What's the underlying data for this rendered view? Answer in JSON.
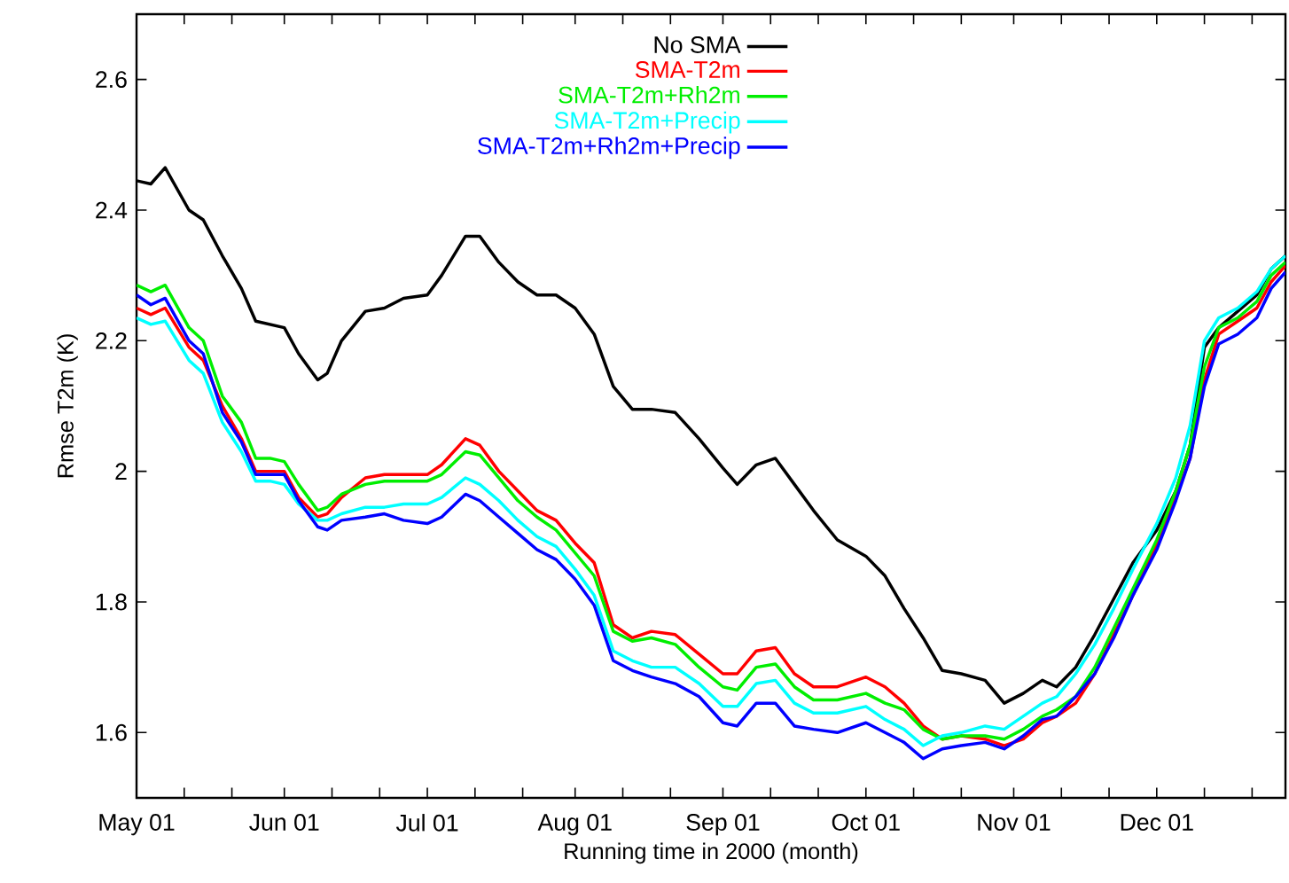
{
  "chart_data": {
    "type": "line",
    "xlabel": "Running time in 2000 (month)",
    "ylabel": "Rmse T2m (K)",
    "x": [
      "2000-05-01",
      "2000-05-04",
      "2000-05-07",
      "2000-05-12",
      "2000-05-15",
      "2000-05-19",
      "2000-05-23",
      "2000-05-26",
      "2000-05-29",
      "2000-06-01",
      "2000-06-04",
      "2000-06-08",
      "2000-06-10",
      "2000-06-13",
      "2000-06-18",
      "2000-06-22",
      "2000-06-26",
      "2000-07-01",
      "2000-07-04",
      "2000-07-09",
      "2000-07-12",
      "2000-07-16",
      "2000-07-20",
      "2000-07-24",
      "2000-07-28",
      "2000-08-01",
      "2000-08-05",
      "2000-08-09",
      "2000-08-13",
      "2000-08-17",
      "2000-08-22",
      "2000-08-27",
      "2000-09-01",
      "2000-09-04",
      "2000-09-08",
      "2000-09-12",
      "2000-09-16",
      "2000-09-20",
      "2000-09-25",
      "2000-10-01",
      "2000-10-05",
      "2000-10-09",
      "2000-10-13",
      "2000-10-17",
      "2000-10-21",
      "2000-10-26",
      "2000-10-30",
      "2000-11-03",
      "2000-11-07",
      "2000-11-10",
      "2000-11-14",
      "2000-11-18",
      "2000-11-22",
      "2000-11-26",
      "2000-12-01",
      "2000-12-05",
      "2000-12-08",
      "2000-12-11",
      "2000-12-14",
      "2000-12-18",
      "2000-12-22",
      "2000-12-25",
      "2000-12-28"
    ],
    "series": [
      {
        "name": "No SMA",
        "color": "#000000",
        "values": [
          2.445,
          2.44,
          2.465,
          2.4,
          2.385,
          2.33,
          2.28,
          2.23,
          2.225,
          2.22,
          2.18,
          2.14,
          2.15,
          2.2,
          2.245,
          2.25,
          2.265,
          2.27,
          2.3,
          2.36,
          2.36,
          2.32,
          2.29,
          2.27,
          2.27,
          2.25,
          2.21,
          2.13,
          2.095,
          2.095,
          2.09,
          2.05,
          2.005,
          1.98,
          2.01,
          2.02,
          1.98,
          1.94,
          1.895,
          1.87,
          1.84,
          1.79,
          1.745,
          1.695,
          1.69,
          1.68,
          1.645,
          1.66,
          1.68,
          1.67,
          1.7,
          1.75,
          1.805,
          1.86,
          1.91,
          1.97,
          2.04,
          2.19,
          2.22,
          2.245,
          2.27,
          2.31,
          2.33
        ]
      },
      {
        "name": "SMA-T2m",
        "color": "#ff0000",
        "values": [
          2.25,
          2.24,
          2.25,
          2.19,
          2.17,
          2.1,
          2.05,
          2.0,
          2.0,
          2.0,
          1.96,
          1.93,
          1.935,
          1.96,
          1.99,
          1.995,
          1.995,
          1.995,
          2.01,
          2.05,
          2.04,
          2.0,
          1.97,
          1.94,
          1.925,
          1.89,
          1.86,
          1.765,
          1.745,
          1.755,
          1.75,
          1.72,
          1.69,
          1.69,
          1.725,
          1.73,
          1.69,
          1.67,
          1.67,
          1.685,
          1.67,
          1.645,
          1.61,
          1.59,
          1.595,
          1.59,
          1.58,
          1.59,
          1.615,
          1.625,
          1.645,
          1.69,
          1.75,
          1.81,
          1.89,
          1.96,
          2.02,
          2.14,
          2.21,
          2.23,
          2.25,
          2.29,
          2.315
        ]
      },
      {
        "name": "SMA-T2m+Rh2m",
        "color": "#00ee00",
        "values": [
          2.285,
          2.275,
          2.285,
          2.22,
          2.2,
          2.115,
          2.075,
          2.02,
          2.02,
          2.015,
          1.98,
          1.94,
          1.945,
          1.965,
          1.98,
          1.985,
          1.985,
          1.985,
          1.995,
          2.03,
          2.025,
          1.99,
          1.955,
          1.93,
          1.91,
          1.875,
          1.84,
          1.755,
          1.74,
          1.745,
          1.735,
          1.7,
          1.67,
          1.665,
          1.7,
          1.705,
          1.67,
          1.65,
          1.65,
          1.66,
          1.645,
          1.635,
          1.605,
          1.59,
          1.595,
          1.595,
          1.59,
          1.605,
          1.625,
          1.635,
          1.655,
          1.7,
          1.76,
          1.82,
          1.895,
          1.97,
          2.04,
          2.16,
          2.22,
          2.235,
          2.26,
          2.3,
          2.32
        ]
      },
      {
        "name": "SMA-T2m+Precip",
        "color": "#00ffff",
        "values": [
          2.235,
          2.225,
          2.23,
          2.17,
          2.15,
          2.075,
          2.03,
          1.985,
          1.985,
          1.98,
          1.95,
          1.925,
          1.925,
          1.935,
          1.945,
          1.945,
          1.95,
          1.95,
          1.96,
          1.99,
          1.98,
          1.955,
          1.925,
          1.9,
          1.885,
          1.85,
          1.81,
          1.725,
          1.71,
          1.7,
          1.7,
          1.675,
          1.64,
          1.64,
          1.675,
          1.68,
          1.645,
          1.63,
          1.63,
          1.64,
          1.62,
          1.605,
          1.58,
          1.595,
          1.6,
          1.61,
          1.605,
          1.625,
          1.645,
          1.655,
          1.69,
          1.735,
          1.79,
          1.85,
          1.92,
          1.99,
          2.07,
          2.2,
          2.235,
          2.25,
          2.275,
          2.31,
          2.33
        ]
      },
      {
        "name": "SMA-T2m+Rh2m+Precip",
        "color": "#0000ff",
        "values": [
          2.27,
          2.255,
          2.265,
          2.2,
          2.18,
          2.09,
          2.045,
          1.995,
          1.995,
          1.995,
          1.955,
          1.915,
          1.91,
          1.925,
          1.93,
          1.935,
          1.925,
          1.92,
          1.93,
          1.965,
          1.955,
          1.93,
          1.905,
          1.88,
          1.865,
          1.835,
          1.795,
          1.71,
          1.695,
          1.685,
          1.675,
          1.655,
          1.615,
          1.61,
          1.645,
          1.645,
          1.61,
          1.605,
          1.6,
          1.615,
          1.6,
          1.585,
          1.56,
          1.575,
          1.58,
          1.585,
          1.575,
          1.595,
          1.62,
          1.625,
          1.655,
          1.69,
          1.745,
          1.81,
          1.88,
          1.955,
          2.02,
          2.13,
          2.195,
          2.21,
          2.235,
          2.28,
          2.305
        ]
      }
    ],
    "xlim": [
      "2000-05-01",
      "2000-12-28"
    ],
    "ylim": [
      1.5,
      2.7
    ],
    "xticks": [
      {
        "value": "2000-05-01",
        "label": "May 01"
      },
      {
        "value": "2000-05-11",
        "label": null
      },
      {
        "value": "2000-05-21",
        "label": null
      },
      {
        "value": "2000-06-01",
        "label": "Jun 01"
      },
      {
        "value": "2000-06-11",
        "label": null
      },
      {
        "value": "2000-06-21",
        "label": null
      },
      {
        "value": "2000-07-01",
        "label": "Jul 01"
      },
      {
        "value": "2000-07-11",
        "label": null
      },
      {
        "value": "2000-07-21",
        "label": null
      },
      {
        "value": "2000-08-01",
        "label": "Aug 01"
      },
      {
        "value": "2000-08-11",
        "label": null
      },
      {
        "value": "2000-08-21",
        "label": null
      },
      {
        "value": "2000-09-01",
        "label": "Sep 01"
      },
      {
        "value": "2000-09-11",
        "label": null
      },
      {
        "value": "2000-09-21",
        "label": null
      },
      {
        "value": "2000-10-01",
        "label": "Oct 01"
      },
      {
        "value": "2000-10-11",
        "label": null
      },
      {
        "value": "2000-10-21",
        "label": null
      },
      {
        "value": "2000-11-01",
        "label": "Nov 01"
      },
      {
        "value": "2000-11-11",
        "label": null
      },
      {
        "value": "2000-11-21",
        "label": null
      },
      {
        "value": "2000-12-01",
        "label": "Dec 01"
      },
      {
        "value": "2000-12-11",
        "label": null
      },
      {
        "value": "2000-12-21",
        "label": null
      }
    ],
    "yticks": [
      1.6,
      1.8,
      2,
      2.2,
      2.4,
      2.6
    ],
    "legend": "top",
    "marker": "none",
    "line_style": "solid"
  }
}
